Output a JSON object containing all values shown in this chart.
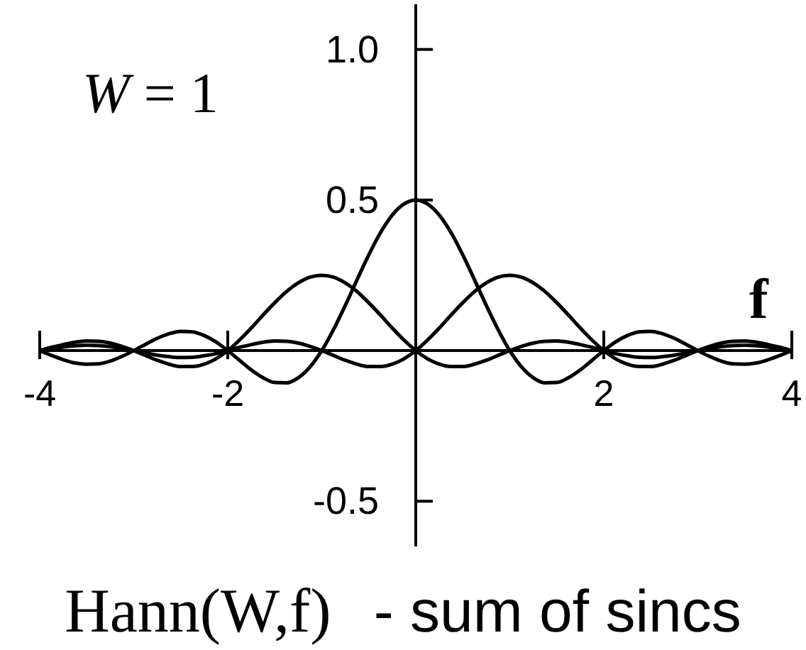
{
  "chart_data": {
    "type": "line",
    "title": "Hann(W,f) - sum of sincs",
    "xlabel": "f",
    "annotations": [
      "W = 1"
    ],
    "x": [
      -4,
      -3.875,
      -3.75,
      -3.625,
      -3.5,
      -3.375,
      -3.25,
      -3.125,
      -3,
      -2.875,
      -2.75,
      -2.625,
      -2.5,
      -2.375,
      -2.25,
      -2.125,
      -2,
      -1.875,
      -1.75,
      -1.625,
      -1.5,
      -1.375,
      -1.25,
      -1.125,
      -1,
      -0.875,
      -0.75,
      -0.625,
      -0.5,
      -0.375,
      -0.25,
      -0.125,
      0,
      0.125,
      0.25,
      0.375,
      0.5,
      0.625,
      0.75,
      0.875,
      1,
      1.125,
      1.25,
      1.375,
      1.5,
      1.625,
      1.75,
      1.875,
      2,
      2.125,
      2.25,
      2.375,
      2.5,
      2.625,
      2.75,
      2.875,
      3,
      3.125,
      3.25,
      3.375,
      3.5,
      3.625,
      3.75,
      3.875,
      4
    ],
    "series": [
      {
        "color": "#000000",
        "values": [
          0,
          -0.016,
          -0.03,
          -0.041,
          -0.045,
          -0.044,
          -0.035,
          -0.019,
          0,
          0.021,
          0.041,
          0.056,
          0.064,
          0.062,
          0.05,
          0.029,
          0,
          -0.032,
          -0.064,
          -0.09,
          -0.106,
          -0.107,
          -0.09,
          -0.054,
          0,
          0.07,
          0.15,
          0.235,
          0.318,
          0.392,
          0.45,
          0.487,
          0.5,
          0.487,
          0.45,
          0.392,
          0.318,
          0.235,
          0.15,
          0.07,
          0,
          -0.054,
          -0.09,
          -0.107,
          -0.106,
          -0.09,
          -0.064,
          -0.032,
          0,
          0.029,
          0.05,
          0.062,
          0.064,
          0.056,
          0.041,
          0.021,
          0,
          -0.019,
          -0.035,
          -0.044,
          -0.045,
          -0.041,
          -0.03,
          -0.016,
          0
        ]
      },
      {
        "color": "#000000",
        "values": [
          0,
          0.011,
          0.02,
          0.028,
          0.032,
          0.031,
          0.025,
          0.014,
          0,
          -0.016,
          -0.032,
          -0.045,
          -0.053,
          -0.053,
          -0.045,
          -0.027,
          0,
          0.035,
          0.075,
          0.118,
          0.159,
          0.196,
          0.225,
          0.244,
          0.25,
          0.244,
          0.225,
          0.196,
          0.159,
          0.118,
          0.075,
          0.035,
          0,
          -0.027,
          -0.045,
          -0.053,
          -0.053,
          -0.045,
          -0.032,
          -0.016,
          0,
          0.014,
          0.025,
          0.031,
          0.032,
          0.028,
          0.02,
          0.011,
          0,
          -0.01,
          -0.017,
          -0.022,
          -0.023,
          -0.02,
          -0.015,
          -0.008,
          0,
          0.007,
          0.013,
          0.017,
          0.018,
          0.016,
          0.012,
          0.006,
          0
        ]
      },
      {
        "color": "#000000",
        "values": [
          0,
          0.006,
          0.012,
          0.016,
          0.018,
          0.017,
          0.013,
          0.007,
          0,
          -0.008,
          -0.015,
          -0.02,
          -0.023,
          -0.022,
          -0.017,
          -0.01,
          0,
          0.011,
          0.02,
          0.028,
          0.032,
          0.031,
          0.025,
          0.014,
          0,
          -0.016,
          -0.032,
          -0.045,
          -0.053,
          -0.053,
          -0.045,
          -0.027,
          0,
          0.035,
          0.075,
          0.118,
          0.159,
          0.196,
          0.225,
          0.244,
          0.25,
          0.244,
          0.225,
          0.196,
          0.159,
          0.118,
          0.075,
          0.035,
          0,
          -0.027,
          -0.045,
          -0.053,
          -0.053,
          -0.045,
          -0.032,
          -0.016,
          0,
          0.014,
          0.025,
          0.031,
          0.032,
          0.028,
          0.02,
          0.011,
          0
        ]
      }
    ],
    "xlim": [
      -4,
      4
    ],
    "ylim": [
      -0.65,
      1.15
    ],
    "xticks": [
      -4,
      -2,
      2,
      4
    ],
    "yticks": [
      {
        "value": 1,
        "label": "1.0"
      },
      0.5,
      -0.5
    ],
    "marker": "none",
    "line_style": "solid"
  }
}
